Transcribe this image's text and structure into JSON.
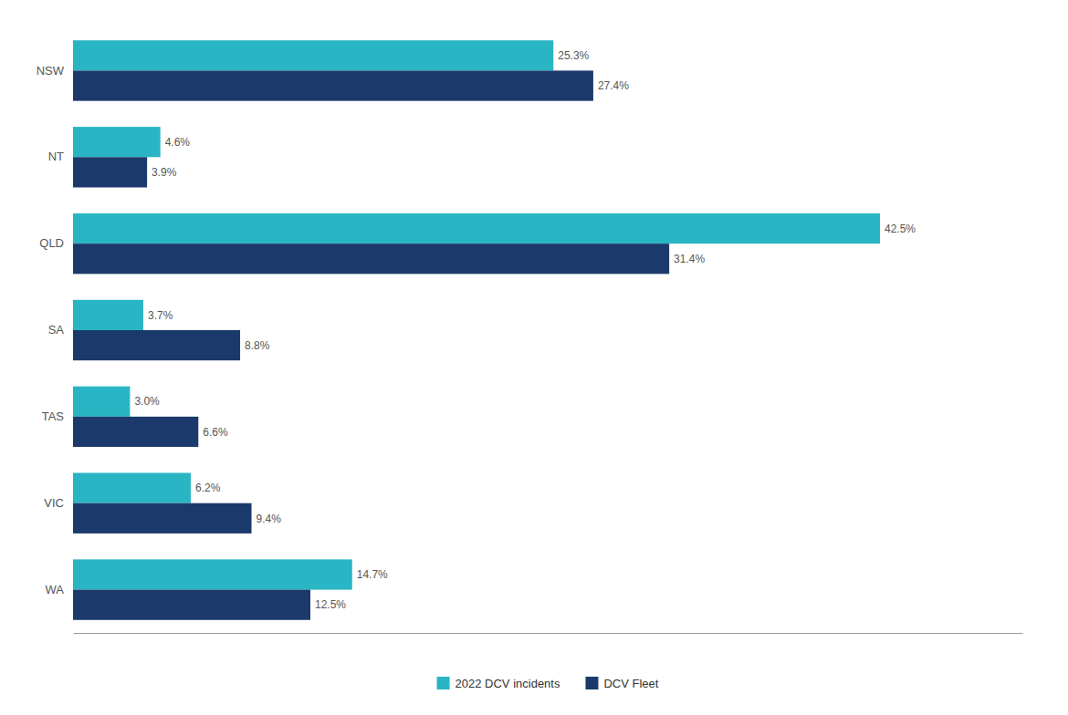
{
  "chart_data": {
    "type": "bar",
    "orientation": "horizontal",
    "categories": [
      "NSW",
      "NT",
      "QLD",
      "SA",
      "TAS",
      "VIC",
      "WA"
    ],
    "series": [
      {
        "name": "2022 DCV incidents",
        "color": "#29B5C3",
        "values": [
          25.3,
          4.6,
          42.5,
          3.7,
          3.0,
          6.2,
          14.7
        ],
        "value_labels": [
          "25.3%",
          "4.6%",
          "42.5%",
          "3.7%",
          "3.0%",
          "6.2%",
          "14.7%"
        ]
      },
      {
        "name": "DCV Fleet",
        "color": "#1B3A6B",
        "values": [
          27.4,
          3.9,
          31.4,
          8.8,
          6.6,
          9.4,
          12.5
        ],
        "value_labels": [
          "27.4%",
          "3.9%",
          "31.4%",
          "8.8%",
          "6.6%",
          "9.4%",
          "12.5%"
        ]
      }
    ],
    "xlim": [
      0,
      50
    ],
    "xticks": [],
    "data_labels": true,
    "tick_labels": "y",
    "legend": "bottom"
  }
}
